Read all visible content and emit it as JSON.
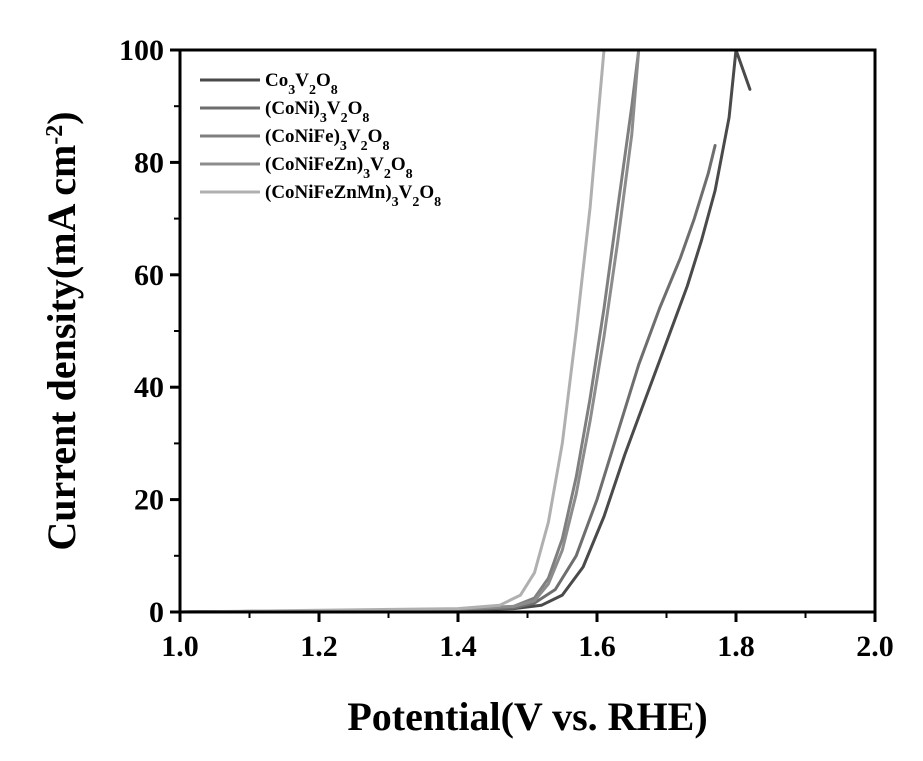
{
  "chart_data": {
    "type": "line",
    "title": "",
    "xlabel": "Potential(V vs. RHE)",
    "ylabel_parts": {
      "main": "Current density(mA cm",
      "sup": "-2",
      "close": ")"
    },
    "xlim": [
      1.0,
      2.0
    ],
    "ylim": [
      0,
      100
    ],
    "xticks": [
      "1.0",
      "1.2",
      "1.4",
      "1.6",
      "1.8",
      "2.0"
    ],
    "yticks": [
      "0",
      "20",
      "40",
      "60",
      "80",
      "100"
    ],
    "grid": false,
    "legend_position": "top-left",
    "series": [
      {
        "name_parts": [
          [
            "Co",
            ""
          ],
          [
            "3",
            "sub"
          ],
          [
            "V",
            ""
          ],
          [
            "2",
            "sub"
          ],
          [
            "O",
            ""
          ],
          [
            "8",
            "sub"
          ]
        ],
        "color": "#4a4a4a",
        "x": [
          1.0,
          1.2,
          1.4,
          1.48,
          1.52,
          1.55,
          1.58,
          1.61,
          1.64,
          1.67,
          1.7,
          1.73,
          1.75,
          1.77,
          1.79,
          1.8,
          1.82
        ],
        "y": [
          0,
          0.2,
          0.4,
          0.6,
          1.2,
          3,
          8,
          17,
          28,
          38,
          48,
          58,
          66,
          75,
          88,
          100,
          93
        ]
      },
      {
        "name_parts": [
          [
            "(CoNi)",
            ""
          ],
          [
            "3",
            "sub"
          ],
          [
            "V",
            ""
          ],
          [
            "2",
            "sub"
          ],
          [
            "O",
            ""
          ],
          [
            "8",
            "sub"
          ]
        ],
        "color": "#6e6e6e",
        "x": [
          1.0,
          1.2,
          1.4,
          1.48,
          1.51,
          1.54,
          1.57,
          1.6,
          1.63,
          1.66,
          1.69,
          1.72,
          1.74,
          1.76,
          1.77
        ],
        "y": [
          0,
          0.2,
          0.4,
          0.7,
          1.6,
          4,
          10,
          20,
          32,
          44,
          54,
          63,
          70,
          78,
          83
        ]
      },
      {
        "name_parts": [
          [
            "(CoNiFe)",
            ""
          ],
          [
            "3",
            "sub"
          ],
          [
            "V",
            ""
          ],
          [
            "2",
            "sub"
          ],
          [
            "O",
            ""
          ],
          [
            "8",
            "sub"
          ]
        ],
        "color": "#7f7f7f",
        "x": [
          1.0,
          1.2,
          1.4,
          1.48,
          1.51,
          1.53,
          1.55,
          1.57,
          1.59,
          1.61,
          1.63,
          1.65,
          1.66
        ],
        "y": [
          0,
          0.2,
          0.5,
          1,
          2.5,
          6,
          13,
          24,
          38,
          54,
          72,
          90,
          100
        ]
      },
      {
        "name_parts": [
          [
            "(CoNiFeZn)",
            ""
          ],
          [
            "3",
            "sub"
          ],
          [
            "V",
            ""
          ],
          [
            "2",
            "sub"
          ],
          [
            "O",
            ""
          ],
          [
            "8",
            "sub"
          ]
        ],
        "color": "#8c8c8c",
        "x": [
          1.0,
          1.2,
          1.4,
          1.48,
          1.51,
          1.53,
          1.55,
          1.57,
          1.59,
          1.61,
          1.63,
          1.65,
          1.66
        ],
        "y": [
          0,
          0.2,
          0.5,
          1,
          2,
          5,
          11,
          21,
          34,
          49,
          66,
          85,
          100
        ]
      },
      {
        "name_parts": [
          [
            "(CoNiFeZnMn)",
            ""
          ],
          [
            "3",
            "sub"
          ],
          [
            "V",
            ""
          ],
          [
            "2",
            "sub"
          ],
          [
            "O",
            ""
          ],
          [
            "8",
            "sub"
          ]
        ],
        "color": "#b0b0b0",
        "x": [
          1.0,
          1.2,
          1.4,
          1.46,
          1.49,
          1.51,
          1.53,
          1.55,
          1.57,
          1.59,
          1.6,
          1.61
        ],
        "y": [
          0,
          0.3,
          0.6,
          1.2,
          3,
          7,
          16,
          30,
          50,
          72,
          86,
          100
        ]
      }
    ]
  }
}
